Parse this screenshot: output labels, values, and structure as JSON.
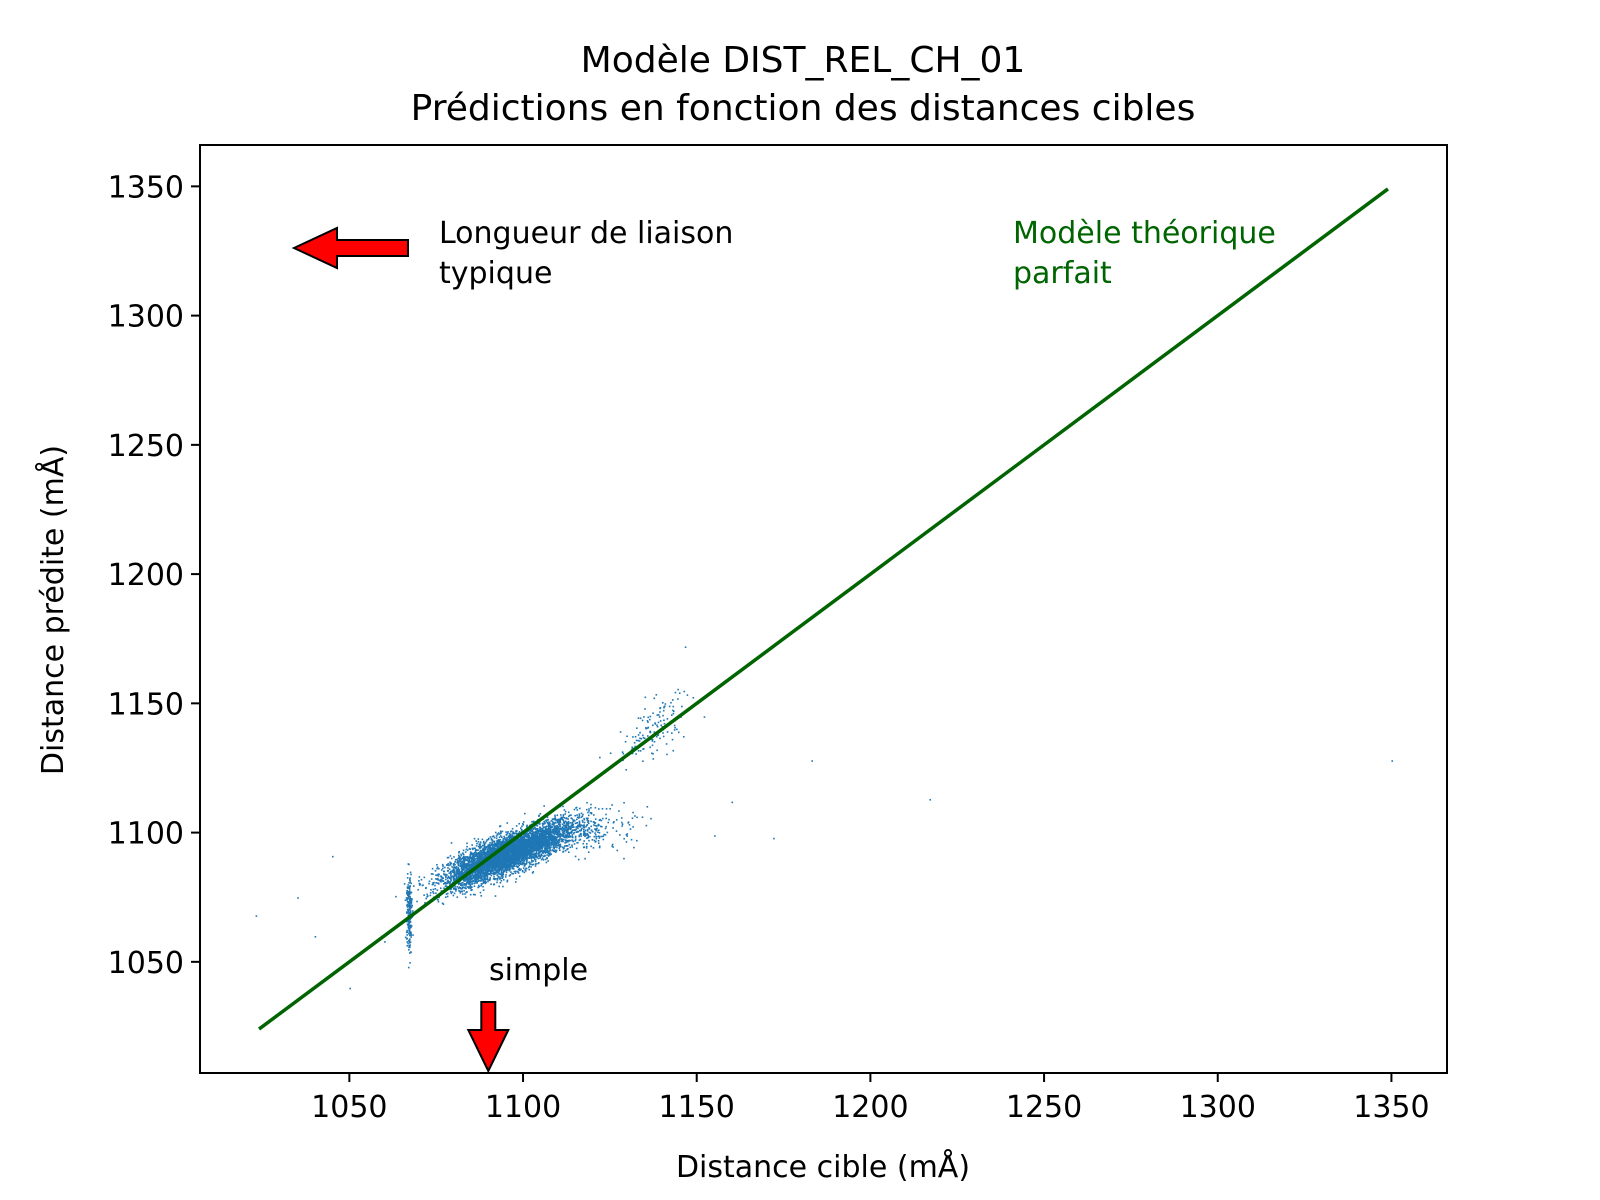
{
  "chart_data": {
    "type": "scatter",
    "title": "Modèle DIST_REL_CH_01",
    "subtitle": "Prédictions en fonction des distances cibles",
    "xlabel": "Distance cible (mÅ)",
    "ylabel": "Distance prédite (mÅ)",
    "xlim": [
      1007,
      1366
    ],
    "ylim": [
      1007,
      1366
    ],
    "xticks": [
      1050,
      1100,
      1150,
      1200,
      1250,
      1300,
      1350
    ],
    "yticks": [
      1050,
      1100,
      1150,
      1200,
      1250,
      1300,
      1350
    ],
    "grid": false,
    "colors": {
      "points": "#1f77b4",
      "ideal_line": "#006400",
      "arrow_fill": "#ff0000",
      "arrow_edge": "#000000"
    },
    "series": [
      {
        "kind": "scatter",
        "clusters": [
          {
            "center": [
              1097,
              1093
            ],
            "spread": [
              9,
              6
            ],
            "correlation": 0.8,
            "count": 4500
          },
          {
            "center": [
              1088,
              1088
            ],
            "spread": [
              6,
              5
            ],
            "correlation": 0.7,
            "count": 900
          },
          {
            "center": [
              1067,
              1070
            ],
            "spread": [
              0.4,
              8
            ],
            "correlation": 0,
            "count": 220
          },
          {
            "center": [
              1120,
              1100
            ],
            "spread": [
              6,
              4
            ],
            "correlation": 0.2,
            "count": 160
          },
          {
            "center": [
              1137,
              1140
            ],
            "spread": [
              5,
              7
            ],
            "correlation": 0.6,
            "count": 140
          }
        ],
        "outliers": [
          [
            1023,
            1068
          ],
          [
            1040,
            1060
          ],
          [
            1050,
            1040
          ],
          [
            1045,
            1091
          ],
          [
            1152,
            1145
          ],
          [
            1160,
            1112
          ],
          [
            1172,
            1098
          ],
          [
            1183,
            1128
          ],
          [
            1217,
            1113
          ],
          [
            1350,
            1128
          ],
          [
            1143,
            1132
          ],
          [
            1155,
            1099
          ],
          [
            1035,
            1075
          ],
          [
            1060,
            1058
          ]
        ]
      },
      {
        "kind": "line",
        "x": [
          1024,
          1349
        ],
        "y": [
          1024,
          1349
        ]
      }
    ],
    "annotations": [
      {
        "text": "Longueur de liaison\ntypique",
        "lines": [
          "Longueur de liaison",
          "typique"
        ],
        "arrow": "left",
        "color": "#000000"
      },
      {
        "text": "simple",
        "lines": [
          "simple"
        ],
        "arrow": "down",
        "x": 1090,
        "color": "#000000"
      },
      {
        "text": "Modèle théorique\nparfait",
        "lines": [
          "Modèle théorique",
          "parfait"
        ],
        "color": "#006400"
      }
    ]
  }
}
